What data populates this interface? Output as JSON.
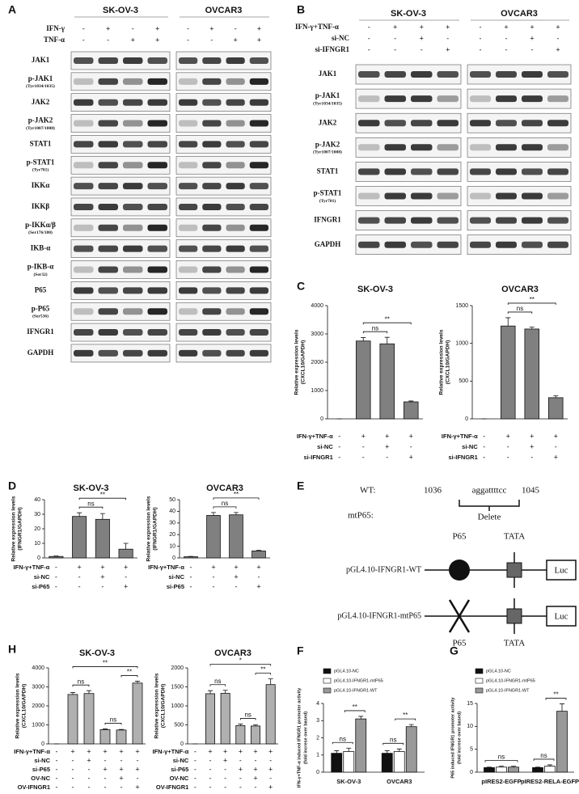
{
  "panel_a": {
    "label": "A",
    "cell_lines": [
      "SK-OV-3",
      "OVCAR3"
    ],
    "treatments": [
      {
        "name": "IFN-γ",
        "signs": [
          "-",
          "+",
          "-",
          "+",
          "-",
          "+",
          "-",
          "+"
        ]
      },
      {
        "name": "TNF-α",
        "signs": [
          "-",
          "-",
          "+",
          "+",
          "-",
          "-",
          "+",
          "+"
        ]
      }
    ],
    "blots": [
      {
        "name": "JAK1"
      },
      {
        "name": "p-JAK1",
        "site": "(Tyr1034/1035)"
      },
      {
        "name": "JAK2"
      },
      {
        "name": "p-JAK2",
        "site": "(Tyr1007/1008)"
      },
      {
        "name": "STAT1"
      },
      {
        "name": "p-STAT1",
        "site": "(Tyr701)"
      },
      {
        "name": "IKKα"
      },
      {
        "name": "IKKβ"
      },
      {
        "name": "p-IKKα/β",
        "site": "(Ser176/180)"
      },
      {
        "name": "IKB-α"
      },
      {
        "name": "p-IKB-α",
        "site": "(Ser32)"
      },
      {
        "name": "P65"
      },
      {
        "name": "p-P65",
        "site": "(Ser536)"
      },
      {
        "name": "IFNGR1"
      },
      {
        "name": "GAPDH"
      }
    ]
  },
  "panel_b": {
    "label": "B",
    "cell_lines": [
      "SK-OV-3",
      "OVCAR3"
    ],
    "treatments": [
      {
        "name": "IFN-γ+TNF-α",
        "signs": [
          "-",
          "+",
          "+",
          "+",
          "-",
          "+",
          "+",
          "+"
        ]
      },
      {
        "name": "si-NC",
        "signs": [
          "-",
          "-",
          "+",
          "-",
          "-",
          "-",
          "+",
          "-"
        ]
      },
      {
        "name": "si-IFNGR1",
        "signs": [
          "-",
          "-",
          "-",
          "+",
          "-",
          "-",
          "-",
          "+"
        ]
      }
    ],
    "blots": [
      {
        "name": "JAK1"
      },
      {
        "name": "p-JAK1",
        "site": "(Tyr1034/1035)"
      },
      {
        "name": "JAK2"
      },
      {
        "name": "p-JAK2",
        "site": "(Tyr1007/1008)"
      },
      {
        "name": "STAT1"
      },
      {
        "name": "p-STAT1",
        "site": "(Tyr701)"
      },
      {
        "name": "IFNGR1"
      },
      {
        "name": "GAPDH"
      }
    ]
  },
  "panel_e": {
    "label": "E",
    "wt_label": "WT:",
    "start": "1036",
    "sequence": "aggattttcc",
    "end": "1045",
    "mut_label": "mtP65:",
    "mutation": "Delete",
    "constructs": [
      {
        "name": "pGL4.10-IFNGR1-WT",
        "site": "P65",
        "box": "TATA",
        "reporter": "Luc"
      },
      {
        "name": "pGL4.10-IFNGR1-mtP65",
        "site": "P65",
        "box": "TATA",
        "reporter": "Luc"
      }
    ]
  },
  "chart_data": [
    {
      "type": "bar",
      "panel_label": "C",
      "title": "SK-OV-3",
      "ylabel": [
        "Relative expression levels",
        "(CXCL10/GAPDH)"
      ],
      "values": [
        0,
        2750,
        2650,
        600
      ],
      "errors": [
        0,
        120,
        230,
        30
      ],
      "color": "#808080",
      "ylim": [
        0,
        4000
      ],
      "yticks": [
        0,
        1000,
        2000,
        3000,
        4000
      ],
      "treatments": [
        {
          "name": "IFN-γ+TNF-α",
          "signs": [
            "-",
            "+",
            "+",
            "+"
          ]
        },
        {
          "name": "si-NC",
          "signs": [
            "-",
            "-",
            "+",
            "-"
          ]
        },
        {
          "name": "si-IFNGR1",
          "signs": [
            "-",
            "-",
            "-",
            "+"
          ]
        }
      ],
      "annotations": [
        {
          "text": "ns",
          "from": 1,
          "to": 2
        },
        {
          "text": "**",
          "from": 1,
          "to": 3
        }
      ]
    },
    {
      "type": "bar",
      "title": "OVCAR3",
      "ylabel": [
        "Relative expression levels",
        "(CXCL10/GAPDH)"
      ],
      "values": [
        0,
        1230,
        1190,
        280
      ],
      "errors": [
        0,
        110,
        25,
        25
      ],
      "color": "#808080",
      "ylim": [
        0,
        1500
      ],
      "yticks": [
        0,
        500,
        1000,
        1500
      ],
      "treatments": [
        {
          "name": "IFN-γ+TNF-α",
          "signs": [
            "-",
            "+",
            "+",
            "+"
          ]
        },
        {
          "name": "si-NC",
          "signs": [
            "-",
            "-",
            "+",
            "-"
          ]
        },
        {
          "name": "si-IFNGR1",
          "signs": [
            "-",
            "-",
            "-",
            "+"
          ]
        }
      ],
      "annotations": [
        {
          "text": "ns",
          "from": 1,
          "to": 2
        },
        {
          "text": "**",
          "from": 1,
          "to": 3
        }
      ]
    },
    {
      "type": "bar",
      "panel_label": "D",
      "title": "SK-OV-3",
      "ylabel": [
        "Relative expression levels",
        "(IFNGR1/GAPDH)"
      ],
      "values": [
        1,
        28.5,
        26.5,
        6
      ],
      "errors": [
        0.3,
        2.5,
        4,
        4
      ],
      "color": "#808080",
      "ylim": [
        0,
        40
      ],
      "yticks": [
        0,
        10,
        20,
        30,
        40
      ],
      "treatments": [
        {
          "name": "IFN-γ+TNF-α",
          "signs": [
            "-",
            "+",
            "+",
            "+"
          ]
        },
        {
          "name": "si-NC",
          "signs": [
            "-",
            "-",
            "+",
            "-"
          ]
        },
        {
          "name": "si-P65",
          "signs": [
            "-",
            "-",
            "-",
            "+"
          ]
        }
      ],
      "annotations": [
        {
          "text": "ns",
          "from": 1,
          "to": 2
        },
        {
          "text": "**",
          "from": 1,
          "to": 3
        }
      ]
    },
    {
      "type": "bar",
      "title": "OVCAR3",
      "ylabel": [
        "Relative expression levels",
        "(IFNGR1/GAPDH)"
      ],
      "values": [
        1,
        36.5,
        37,
        6
      ],
      "errors": [
        0.3,
        2.5,
        2,
        0.5
      ],
      "color": "#808080",
      "ylim": [
        0,
        50
      ],
      "yticks": [
        0,
        10,
        20,
        30,
        40,
        50
      ],
      "treatments": [
        {
          "name": "IFN-γ+TNF-α",
          "signs": [
            "-",
            "+",
            "+",
            "+"
          ]
        },
        {
          "name": "si-NC",
          "signs": [
            "-",
            "-",
            "+",
            "-"
          ]
        },
        {
          "name": "si-P65",
          "signs": [
            "-",
            "-",
            "-",
            "+"
          ]
        }
      ],
      "annotations": [
        {
          "text": "ns",
          "from": 1,
          "to": 2
        },
        {
          "text": "**",
          "from": 1,
          "to": 3
        }
      ]
    },
    {
      "type": "bar",
      "panel_label": "H",
      "title": "SK-OV-3",
      "ylabel": [
        "Relative expression levels",
        "(CXCL10/GAPDH)"
      ],
      "values": [
        0,
        2600,
        2650,
        750,
        730,
        3200
      ],
      "errors": [
        0,
        100,
        150,
        40,
        30,
        100
      ],
      "color": "#b0b0b0",
      "ylim": [
        0,
        4000
      ],
      "yticks": [
        0,
        1000,
        2000,
        3000,
        4000
      ],
      "treatments": [
        {
          "name": "IFN-γ+TNF-α",
          "signs": [
            "-",
            "+",
            "+",
            "+",
            "+",
            "+"
          ]
        },
        {
          "name": "si-NC",
          "signs": [
            "-",
            "-",
            "+",
            "-",
            "-",
            "-"
          ]
        },
        {
          "name": "si-P65",
          "signs": [
            "-",
            "-",
            "-",
            "+",
            "+",
            "+"
          ]
        },
        {
          "name": "OV-NC",
          "signs": [
            "-",
            "-",
            "-",
            "-",
            "+",
            "-"
          ]
        },
        {
          "name": "OV-IFNGR1",
          "signs": [
            "-",
            "-",
            "-",
            "-",
            "-",
            "+"
          ]
        }
      ],
      "annotations": [
        {
          "text": "ns",
          "from": 1,
          "to": 2
        },
        {
          "text": "ns",
          "from": 3,
          "to": 4
        },
        {
          "text": "**",
          "from": 4,
          "to": 5
        },
        {
          "text": "**",
          "from": 1,
          "to": 5
        }
      ]
    },
    {
      "type": "bar",
      "title": "OVCAR3",
      "ylabel": [
        "Relative expression levels",
        "(CXCL10/GAPDH)"
      ],
      "values": [
        0,
        1320,
        1330,
        480,
        470,
        1560
      ],
      "errors": [
        0,
        80,
        80,
        40,
        30,
        150
      ],
      "color": "#b0b0b0",
      "ylim": [
        0,
        2000
      ],
      "yticks": [
        0,
        500,
        1000,
        1500,
        2000
      ],
      "treatments": [
        {
          "name": "IFN-γ+TNF-α",
          "signs": [
            "-",
            "+",
            "+",
            "+",
            "+",
            "+"
          ]
        },
        {
          "name": "si-NC",
          "signs": [
            "-",
            "-",
            "+",
            "-",
            "-",
            "-"
          ]
        },
        {
          "name": "si-P65",
          "signs": [
            "-",
            "-",
            "-",
            "+",
            "+",
            "+"
          ]
        },
        {
          "name": "OV-NC",
          "signs": [
            "-",
            "-",
            "-",
            "-",
            "+",
            "-"
          ]
        },
        {
          "name": "OV-IFNGR1",
          "signs": [
            "-",
            "-",
            "-",
            "-",
            "-",
            "+"
          ]
        }
      ],
      "annotations": [
        {
          "text": "ns",
          "from": 1,
          "to": 2
        },
        {
          "text": "ns",
          "from": 3,
          "to": 4
        },
        {
          "text": "**",
          "from": 4,
          "to": 5
        },
        {
          "text": "*",
          "from": 1,
          "to": 5
        }
      ]
    },
    {
      "type": "grouped_bar",
      "panel_label": "F",
      "ylabel": [
        "IFN-γ+TNF-α induced IFNGR1 promoter activity",
        "(fold increse over based)"
      ],
      "categories": [
        "SK-OV-3",
        "OVCAR3"
      ],
      "series": [
        {
          "name": "pGL4.10-NC",
          "color": "#111111",
          "values": [
            1.1,
            1.1
          ],
          "errors": [
            0.15,
            0.15
          ]
        },
        {
          "name": "pGL4.10-IFNGR1-mtP65",
          "color": "#ffffff",
          "values": [
            1.2,
            1.2
          ],
          "errors": [
            0.2,
            0.15
          ]
        },
        {
          "name": "pGL4.10-IFNGR1-WT",
          "color": "#999999",
          "values": [
            3.1,
            2.65
          ],
          "errors": [
            0.15,
            0.12
          ]
        }
      ],
      "ylim": [
        0,
        4
      ],
      "yticks": [
        0,
        1,
        2,
        3,
        4
      ],
      "annotations": [
        {
          "text": "ns",
          "group": 0,
          "from": 0,
          "to": 1
        },
        {
          "text": "**",
          "group": 0,
          "from": 1,
          "to": 2
        },
        {
          "text": "ns",
          "group": 1,
          "from": 0,
          "to": 1
        },
        {
          "text": "**",
          "group": 1,
          "from": 1,
          "to": 2
        }
      ]
    },
    {
      "type": "grouped_bar",
      "panel_label": "G",
      "ylabel": [
        "P65 induced IFNGR1 promoter activity",
        "(fold increse over based)"
      ],
      "categories": [
        "pIRES2-EGFP",
        "pIRES2-RELA-EGFP"
      ],
      "series": [
        {
          "name": "pGL4.10-NC",
          "color": "#111111",
          "values": [
            1,
            1
          ],
          "errors": [
            0.1,
            0.1
          ]
        },
        {
          "name": "pGL4.10-IFNGR1-mtP65",
          "color": "#ffffff",
          "values": [
            1.1,
            1.3
          ],
          "errors": [
            0.2,
            0.3
          ]
        },
        {
          "name": "pGL4.10-IFNGR1-WT",
          "color": "#999999",
          "values": [
            1.1,
            13.3
          ],
          "errors": [
            0.2,
            1.6
          ]
        }
      ],
      "ylim": [
        0,
        15
      ],
      "yticks": [
        0,
        5,
        10,
        15
      ],
      "annotations": [
        {
          "text": "ns",
          "group": 0,
          "from": 0,
          "to": 2
        },
        {
          "text": "ns",
          "group": 1,
          "from": 0,
          "to": 1
        },
        {
          "text": "**",
          "group": 1,
          "from": 1,
          "to": 2
        }
      ]
    }
  ]
}
